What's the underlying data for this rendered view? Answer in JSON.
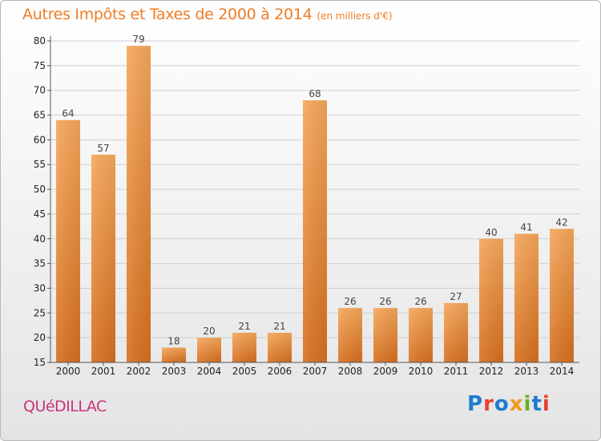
{
  "header": {
    "title": "Autres Impôts et Taxes de 2000 à 2014",
    "subtitle": "(en milliers d'€)"
  },
  "footer": {
    "commune": "QUéDILLAC",
    "logo_text": "Proxiti",
    "logo_colors": [
      "#1d7bd1",
      "#e8402d",
      "#1d7bd1",
      "#f29a1c",
      "#6aaf2a",
      "#1d7bd1",
      "#e8402d"
    ]
  },
  "colors": {
    "bar_top": "#f6a75a",
    "bar_bottom": "#d66f1f",
    "grid": "#cfcfcf",
    "title": "#ee7d26",
    "commune": "#c8357a"
  },
  "chart_data": {
    "type": "bar",
    "title": "Autres Impôts et Taxes de 2000 à 2014",
    "categories": [
      "2000",
      "2001",
      "2002",
      "2003",
      "2004",
      "2005",
      "2006",
      "2007",
      "2008",
      "2009",
      "2010",
      "2011",
      "2012",
      "2013",
      "2014"
    ],
    "values": [
      64,
      57,
      79,
      18,
      20,
      21,
      21,
      68,
      26,
      26,
      26,
      27,
      40,
      41,
      42
    ],
    "ylim": [
      15,
      80
    ],
    "yticks": [
      15,
      20,
      25,
      30,
      35,
      40,
      45,
      50,
      55,
      60,
      65,
      70,
      75,
      80
    ],
    "grid": true,
    "data_labels": true
  }
}
